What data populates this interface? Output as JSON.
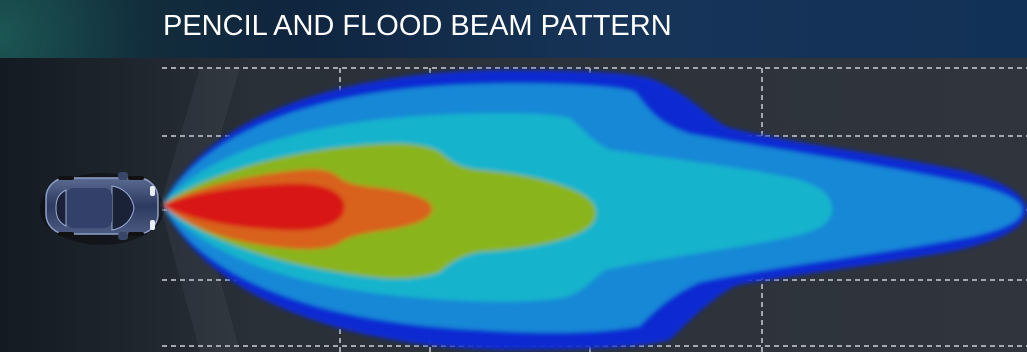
{
  "title": "PENCIL AND FLOOD BEAM PATTERN",
  "colors": {
    "flood_outer": "#0f2bd2",
    "flood_mid": "#1688d6",
    "pencil_outer": "#16b4cc",
    "mid_beam": "#8ab41e",
    "inner_beam": "#d8621e",
    "hotspot": "#d81818",
    "grid": "#b8bcc4"
  },
  "icons": {
    "vehicle": "car-top-view-icon"
  }
}
